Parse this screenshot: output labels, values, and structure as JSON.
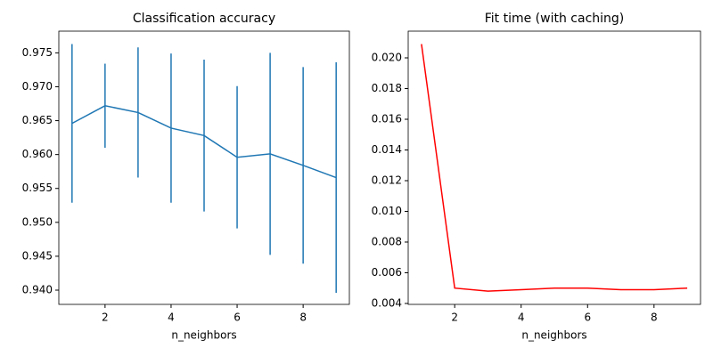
{
  "chart_data": [
    {
      "type": "errorbar-line",
      "title": "Classification accuracy",
      "xlabel": "n_neighbors",
      "x": [
        1,
        2,
        3,
        4,
        5,
        6,
        7,
        8,
        9
      ],
      "values": [
        0.9646,
        0.9672,
        0.9662,
        0.9639,
        0.9628,
        0.9596,
        0.9601,
        0.9584,
        0.9566
      ],
      "errors": [
        0.0117,
        0.0062,
        0.0096,
        0.011,
        0.0112,
        0.0105,
        0.0149,
        0.0145,
        0.017
      ],
      "color": "#1f77b4",
      "xlim": [
        0.6,
        9.4
      ],
      "xticks": [
        2,
        4,
        6,
        8
      ],
      "ylim": [
        0.9379,
        0.9782
      ],
      "yticks": [
        {
          "value": 0.94,
          "label": "0.940"
        },
        0.945,
        {
          "value": 0.95,
          "label": "0.950"
        },
        0.955,
        {
          "value": 0.96,
          "label": "0.960"
        },
        0.965,
        {
          "value": 0.97,
          "label": "0.970"
        },
        0.975
      ]
    },
    {
      "type": "line",
      "title": "Fit time (with caching)",
      "xlabel": "n_neighbors",
      "x": [
        1,
        2,
        3,
        4,
        5,
        6,
        7,
        8,
        9
      ],
      "values": [
        0.0209,
        0.005,
        0.0048,
        0.0049,
        0.005,
        0.005,
        0.0049,
        0.0049,
        0.005
      ],
      "color": "#ff0000",
      "xlim": [
        0.6,
        9.4
      ],
      "xticks": [
        2,
        4,
        6,
        8
      ],
      "ylim": [
        0.00394,
        0.02174
      ],
      "yticks": [
        0.004,
        0.006,
        0.008,
        {
          "value": 0.01,
          "label": "0.010"
        },
        0.012,
        0.014,
        0.016,
        0.018,
        {
          "value": 0.02,
          "label": "0.020"
        }
      ]
    }
  ]
}
